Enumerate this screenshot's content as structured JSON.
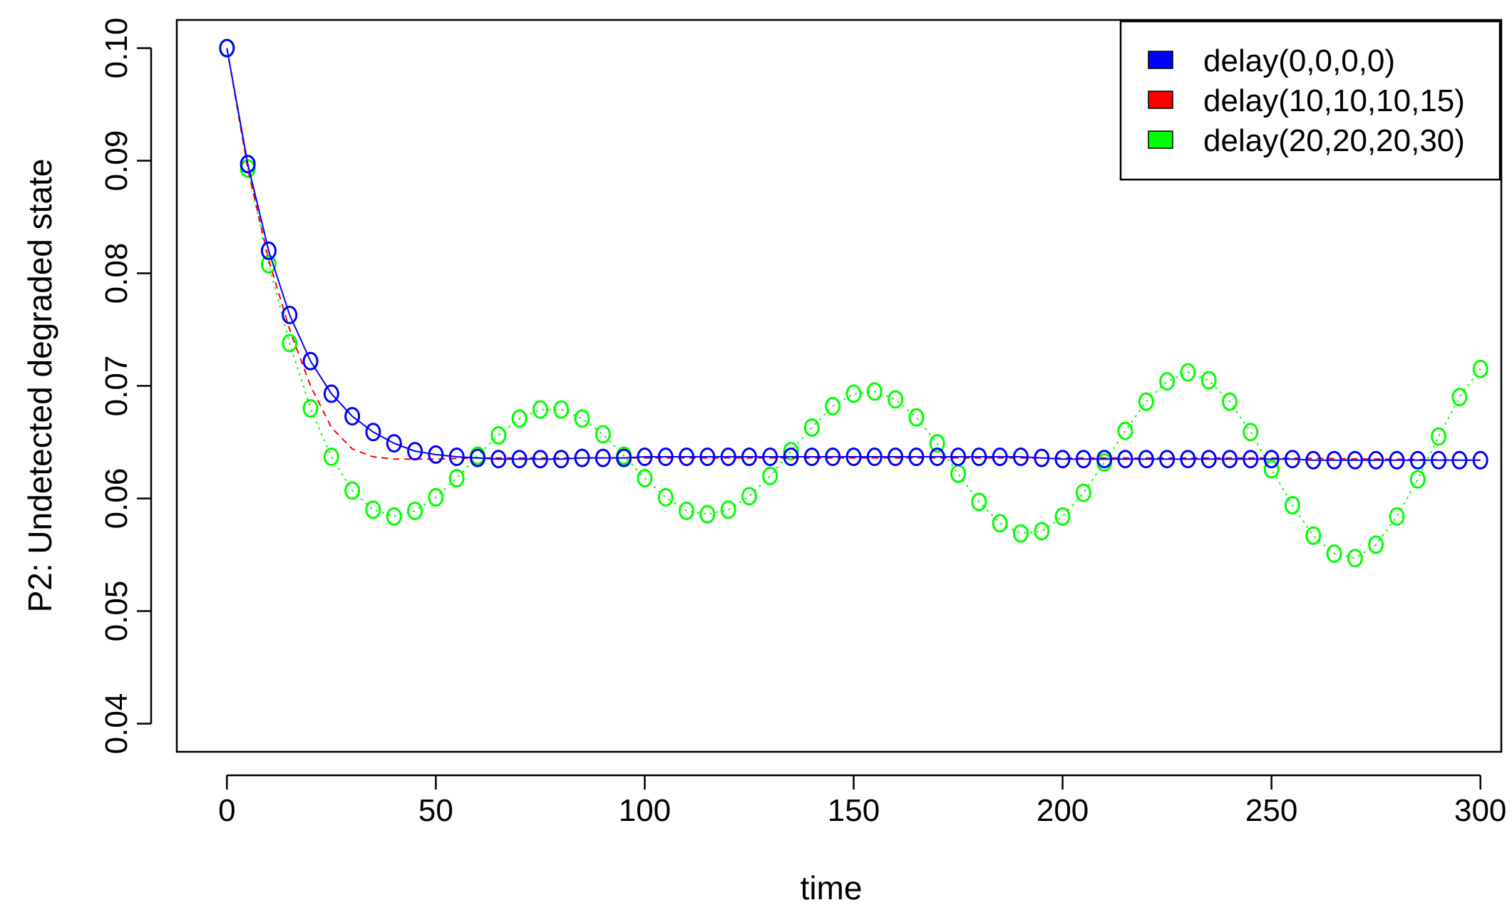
{
  "chart_data": {
    "type": "line",
    "title": "",
    "xlabel": "time",
    "ylabel": "P2: Undetected degraded state",
    "xlim": [
      -12,
      305
    ],
    "ylim": [
      0.0375,
      0.1025
    ],
    "xticks": [
      "0",
      "50",
      "100",
      "150",
      "200",
      "250",
      "300"
    ],
    "yticks": [
      "0.04",
      "0.05",
      "0.06",
      "0.07",
      "0.08",
      "0.09",
      "0.10"
    ],
    "grid": false,
    "legend": "top-right",
    "series": [
      {
        "name": "delay(0,0,0,0)",
        "color": "#0000ff",
        "line_style": "solid",
        "markers": true,
        "x": [
          0,
          5,
          10,
          15,
          20,
          25,
          30,
          35,
          40,
          45,
          50,
          55,
          60,
          65,
          70,
          75,
          80,
          85,
          90,
          95,
          100,
          105,
          110,
          115,
          120,
          125,
          130,
          135,
          140,
          145,
          150,
          155,
          160,
          165,
          170,
          175,
          180,
          185,
          190,
          195,
          200,
          205,
          210,
          215,
          220,
          225,
          230,
          235,
          240,
          245,
          250,
          255,
          260,
          265,
          270,
          275,
          280,
          285,
          290,
          295,
          300
        ],
        "values": [
          0.1,
          0.0897,
          0.082,
          0.0763,
          0.0722,
          0.0693,
          0.0673,
          0.0659,
          0.0649,
          0.0642,
          0.0639,
          0.0637,
          0.0636,
          0.0635,
          0.0635,
          0.0635,
          0.0635,
          0.0636,
          0.0636,
          0.0636,
          0.0637,
          0.0637,
          0.0637,
          0.0637,
          0.0637,
          0.0637,
          0.0637,
          0.0637,
          0.0637,
          0.0637,
          0.0637,
          0.0637,
          0.0637,
          0.0637,
          0.0637,
          0.0637,
          0.0637,
          0.0637,
          0.0637,
          0.0636,
          0.0635,
          0.0635,
          0.0635,
          0.0635,
          0.0635,
          0.0635,
          0.0635,
          0.0635,
          0.0635,
          0.0635,
          0.0635,
          0.0635,
          0.0634,
          0.0634,
          0.0634,
          0.0634,
          0.0634,
          0.0634,
          0.0634,
          0.0634,
          0.0634
        ]
      },
      {
        "name": "delay(10,10,10,15)",
        "color": "#ff0000",
        "line_style": "dashed",
        "markers": false,
        "x": [
          0,
          5,
          10,
          15,
          20,
          25,
          30,
          35,
          40,
          45,
          50,
          60,
          80,
          100,
          150,
          200,
          250,
          300
        ],
        "values": [
          0.1,
          0.0893,
          0.0812,
          0.075,
          0.07,
          0.0663,
          0.0644,
          0.0637,
          0.0635,
          0.0635,
          0.0635,
          0.0636,
          0.0636,
          0.0636,
          0.0636,
          0.0636,
          0.0636,
          0.0634
        ]
      },
      {
        "name": "delay(20,20,20,30)",
        "color": "#00ff00",
        "line_style": "dotted",
        "markers": true,
        "x": [
          0,
          5,
          10,
          15,
          20,
          25,
          30,
          35,
          40,
          45,
          50,
          55,
          60,
          65,
          70,
          75,
          80,
          85,
          90,
          95,
          100,
          105,
          110,
          115,
          120,
          125,
          130,
          135,
          140,
          145,
          150,
          155,
          160,
          165,
          170,
          175,
          180,
          185,
          190,
          195,
          200,
          205,
          210,
          215,
          220,
          225,
          230,
          235,
          240,
          245,
          250,
          255,
          260,
          265,
          270,
          275,
          280,
          285,
          290,
          295,
          300
        ],
        "values": [
          0.1,
          0.0893,
          0.0808,
          0.0738,
          0.068,
          0.0637,
          0.0607,
          0.059,
          0.0584,
          0.0589,
          0.0601,
          0.0618,
          0.0638,
          0.0656,
          0.0671,
          0.0679,
          0.0679,
          0.0671,
          0.0657,
          0.0638,
          0.0618,
          0.0601,
          0.0589,
          0.0586,
          0.059,
          0.0602,
          0.062,
          0.0642,
          0.0663,
          0.0682,
          0.0693,
          0.0695,
          0.0688,
          0.0672,
          0.0649,
          0.0622,
          0.0597,
          0.0578,
          0.0569,
          0.0571,
          0.0584,
          0.0605,
          0.0632,
          0.066,
          0.0686,
          0.0704,
          0.0712,
          0.0705,
          0.0686,
          0.0659,
          0.0626,
          0.0594,
          0.0567,
          0.0551,
          0.0547,
          0.0559,
          0.0584,
          0.0617,
          0.0655,
          0.069,
          0.0715
        ]
      }
    ]
  }
}
